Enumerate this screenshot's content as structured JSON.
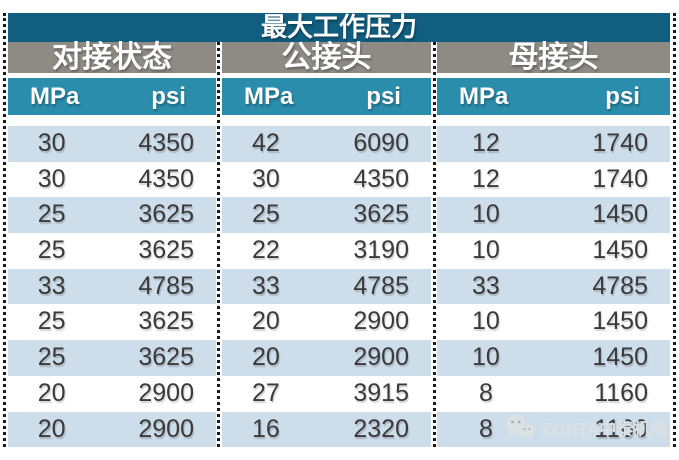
{
  "colors": {
    "title-bg": "#115e80",
    "group-bg": "#8e8b85",
    "units-bg": "#2a8dac",
    "row-alt-bg": "#cdddea",
    "row-bg": "#ffffff",
    "header-text": "#ffffff",
    "data-text": "#3a3a3c",
    "divider": "#1b1b1b",
    "watermark": "#dce1e4"
  },
  "table": {
    "title": "最大工作压力",
    "groups": [
      {
        "label": "对接状态",
        "units": [
          "MPa",
          "psi"
        ]
      },
      {
        "label": "公接头",
        "units": [
          "MPa",
          "psi"
        ]
      },
      {
        "label": "母接头",
        "units": [
          "MPa",
          "psi"
        ]
      }
    ],
    "rows": [
      [
        "30",
        "4350",
        "42",
        "6090",
        "12",
        "1740"
      ],
      [
        "30",
        "4350",
        "30",
        "4350",
        "12",
        "1740"
      ],
      [
        "25",
        "3625",
        "25",
        "3625",
        "10",
        "1450"
      ],
      [
        "25",
        "3625",
        "22",
        "3190",
        "10",
        "1450"
      ],
      [
        "33",
        "4785",
        "33",
        "4785",
        "33",
        "4785"
      ],
      [
        "25",
        "3625",
        "20",
        "2900",
        "10",
        "1450"
      ],
      [
        "25",
        "3625",
        "20",
        "2900",
        "10",
        "1450"
      ],
      [
        "20",
        "2900",
        "27",
        "3915",
        "8",
        "1160"
      ],
      [
        "20",
        "2900",
        "16",
        "2320",
        "8",
        "1160"
      ]
    ]
  },
  "watermark": {
    "icon": "wechat-icon",
    "text": "ZONTA中泰机电"
  }
}
